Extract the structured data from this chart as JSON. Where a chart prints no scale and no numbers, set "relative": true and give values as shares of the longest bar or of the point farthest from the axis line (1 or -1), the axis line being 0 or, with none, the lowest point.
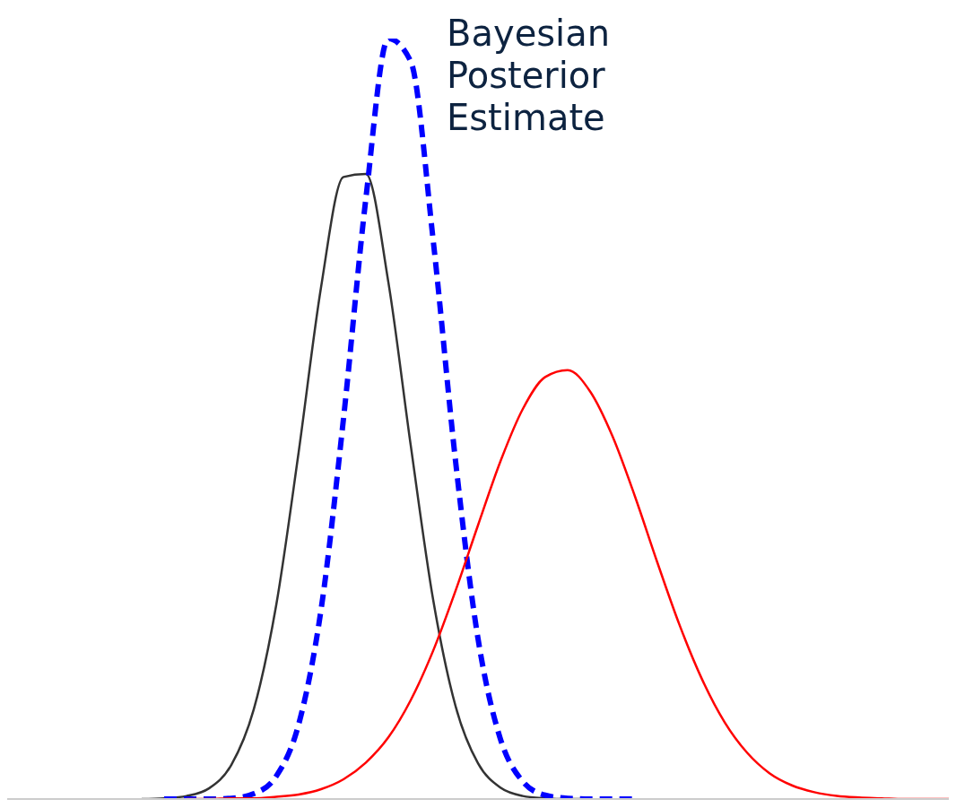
{
  "chart_data": {
    "type": "line",
    "relative": true,
    "annotations": [
      "Bayesian Posterior Estimate"
    ],
    "categories": [
      null,
      null,
      null,
      null,
      null,
      null,
      null,
      null,
      null,
      null,
      null,
      null,
      null,
      null,
      null,
      null,
      null,
      null,
      null,
      null,
      null,
      null,
      null,
      null,
      null,
      null,
      null,
      null,
      null,
      null,
      null,
      null,
      null,
      null,
      null,
      null,
      null,
      null,
      null,
      null,
      null,
      null,
      null
    ],
    "series": [
      {
        "color": "#333333",
        "line_style": "solid",
        "values": [
          null,
          null,
          null,
          null,
          null,
          null,
          0,
          0.001,
          0.004,
          0.014,
          0.045,
          0.118,
          0.255,
          0.456,
          0.673,
          0.818,
          0.822,
          0.68,
          0.465,
          0.262,
          0.122,
          0.047,
          0.015,
          0.004,
          0.001,
          0,
          0,
          null,
          null,
          null,
          null,
          null,
          null,
          null,
          null,
          null,
          null,
          null,
          null,
          null,
          null,
          null,
          null
        ]
      },
      {
        "color": "#0000ff",
        "line_style": "dashed",
        "values": [
          null,
          null,
          null,
          null,
          null,
          null,
          null,
          0,
          0,
          0,
          0.001,
          0.007,
          0.03,
          0.098,
          0.249,
          0.5,
          0.79,
          1,
          0.97,
          0.735,
          0.444,
          0.211,
          0.079,
          0.023,
          0.005,
          0.001,
          0,
          0,
          0,
          null,
          null,
          null,
          null,
          null,
          null,
          null,
          null,
          null,
          null,
          null,
          null,
          null,
          null
        ]
      },
      {
        "color": "#ff0000",
        "line_style": "solid",
        "values": [
          null,
          null,
          null,
          null,
          null,
          null,
          null,
          null,
          0,
          0,
          0.001,
          0.001,
          0.003,
          0.006,
          0.013,
          0.026,
          0.048,
          0.081,
          0.13,
          0.195,
          0.274,
          0.36,
          0.444,
          0.513,
          0.555,
          0.564,
          0.536,
          0.477,
          0.398,
          0.311,
          0.228,
          0.157,
          0.101,
          0.061,
          0.034,
          0.018,
          0.009,
          0.004,
          0.002,
          0.001,
          0,
          0,
          0
        ]
      }
    ]
  }
}
